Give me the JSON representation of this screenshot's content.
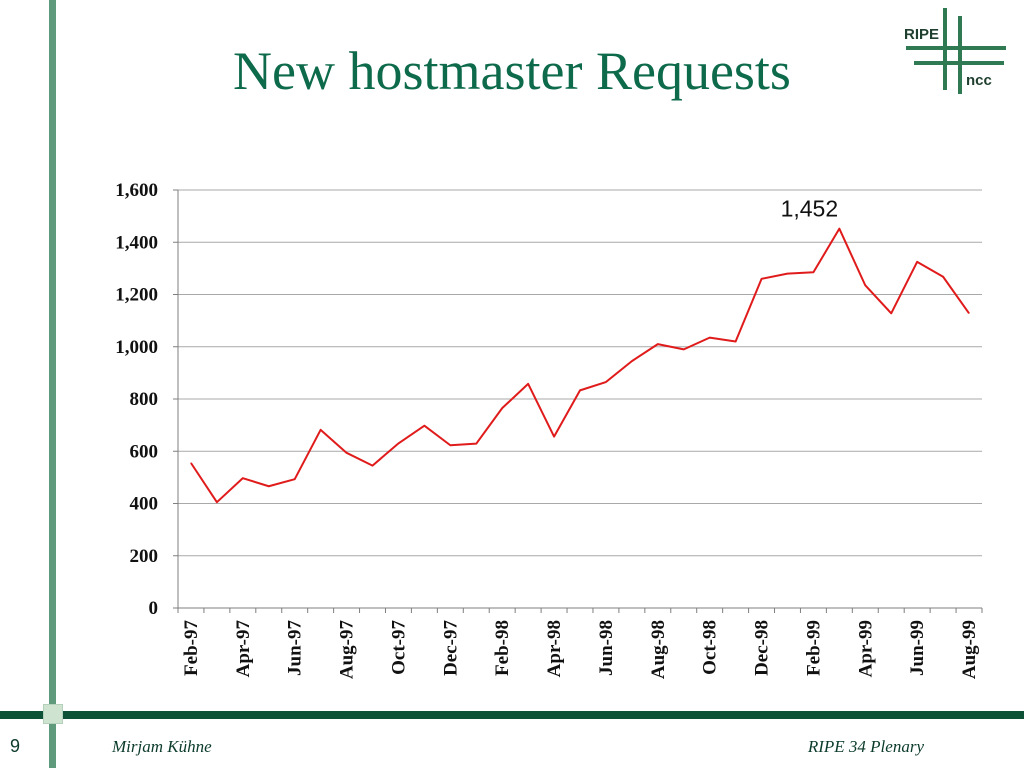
{
  "slide": {
    "title": "New hostmaster Requests",
    "page_number": "9",
    "footer_left": "Mirjam Kühne",
    "footer_right": "RIPE 34 Plenary"
  },
  "logo": {
    "top_text": "RIPE",
    "bottom_text": "ncc"
  },
  "colors": {
    "title": "#0d6a4b",
    "accent": "#0d5136",
    "line": "#e01b1b",
    "grid": "#a9a9a9"
  },
  "chart_data": {
    "type": "line",
    "title": "",
    "xlabel": "",
    "ylabel": "",
    "ylim": [
      0,
      1600
    ],
    "yticks": [
      "0",
      "200",
      "400",
      "600",
      "800",
      "1,000",
      "1,200",
      "1,400",
      "1,600"
    ],
    "grid": true,
    "legend": "none",
    "x": [
      "Feb-97",
      "Mar-97",
      "Apr-97",
      "May-97",
      "Jun-97",
      "Jul-97",
      "Aug-97",
      "Sep-97",
      "Oct-97",
      "Nov-97",
      "Dec-97",
      "Jan-98",
      "Feb-98",
      "Mar-98",
      "Apr-98",
      "May-98",
      "Jun-98",
      "Jul-98",
      "Aug-98",
      "Sep-98",
      "Oct-98",
      "Nov-98",
      "Dec-98",
      "Jan-99",
      "Feb-99",
      "Mar-99",
      "Apr-99",
      "May-99",
      "Jun-99",
      "Jul-99",
      "Aug-99"
    ],
    "tick_labels": [
      "Feb-97",
      "Apr-97",
      "Jun-97",
      "Aug-97",
      "Oct-97",
      "Dec-97",
      "Feb-98",
      "Apr-98",
      "Jun-98",
      "Aug-98",
      "Oct-98",
      "Dec-98",
      "Feb-99",
      "Apr-99",
      "Jun-99",
      "Aug-99"
    ],
    "series": [
      {
        "values": [
          555,
          405,
          497,
          466,
          493,
          682,
          594,
          545,
          630,
          698,
          623,
          629,
          765,
          858,
          656,
          833,
          865,
          945,
          1010,
          990,
          1035,
          1020,
          1260,
          1280,
          1285,
          1452,
          1235,
          1128,
          1325,
          1268,
          1128
        ]
      }
    ],
    "annotations": [
      {
        "text": "1,452",
        "x": "Mar-99",
        "y": 1452
      }
    ]
  }
}
